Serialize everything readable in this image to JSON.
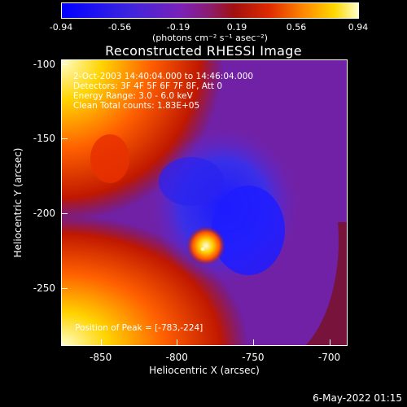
{
  "chart_data": {
    "type": "heatmap",
    "title": "Reconstructed RHESSI Image",
    "xlabel": "Heliocentric X (arcsec)",
    "ylabel": "Heliocentric Y (arcsec)",
    "xlim": [
      -876,
      -688
    ],
    "ylim": [
      -289,
      -97
    ],
    "x_ticks": [
      "-850",
      "-800",
      "-750",
      "-700"
    ],
    "x_tick_values": [
      -850,
      -800,
      -750,
      -700
    ],
    "y_ticks": [
      "-100",
      "-150",
      "-200",
      "-250"
    ],
    "y_tick_values": [
      -100,
      -150,
      -200,
      -250
    ],
    "colorbar": {
      "ticks": [
        "-0.94",
        "-0.56",
        "-0.19",
        "0.19",
        "0.56",
        "0.94"
      ],
      "range": [
        -0.94,
        0.94
      ],
      "unit": "(photons cm⁻² s⁻¹ asec⁻²)"
    },
    "annotations": {
      "time": "2-Oct-2003 14:40:04.000 to 14:46:04.000",
      "detectors": "Detectors: 3F 4F 5F 6F 7F 8F, Att 0",
      "energy": "Energy Range: 3.0 - 6.0 keV",
      "clean": "Clean     Total counts: 1.83E+05",
      "position": "Position of Peak = [-783,-224]"
    },
    "peak": {
      "x": -783,
      "y": -224
    }
  },
  "footer": {
    "date": "6-May-2022 01:15"
  }
}
